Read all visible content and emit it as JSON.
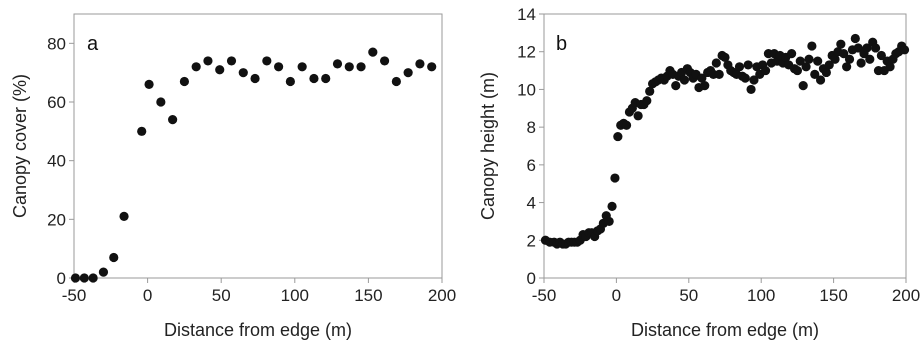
{
  "chart_data": [
    {
      "type": "scatter",
      "panel_label": "a",
      "xlabel": "Distance from edge (m)",
      "ylabel": "Canopy cover (%)",
      "xlim": [
        -50,
        200
      ],
      "ylim": [
        0,
        90
      ],
      "xticks": [
        -50,
        0,
        50,
        100,
        150,
        200
      ],
      "yticks": [
        0,
        20,
        40,
        60,
        80
      ],
      "x": [
        -49,
        -43,
        -37,
        -30,
        -23,
        -16,
        -4,
        1,
        9,
        17,
        25,
        33,
        41,
        49,
        57,
        65,
        73,
        81,
        89,
        97,
        105,
        113,
        121,
        129,
        137,
        145,
        153,
        161,
        169,
        177,
        185,
        193
      ],
      "y": [
        0,
        0,
        0,
        2,
        7,
        21,
        50,
        66,
        60,
        54,
        67,
        72,
        74,
        71,
        74,
        70,
        68,
        74,
        72,
        67,
        72,
        68,
        68,
        73,
        72,
        72,
        77,
        74,
        67,
        70,
        73,
        72
      ],
      "color": "#111111"
    },
    {
      "type": "scatter",
      "panel_label": "b",
      "xlabel": "Distance from edge (m)",
      "ylabel": "Canopy height (m)",
      "xlim": [
        -50,
        200
      ],
      "ylim": [
        0,
        14
      ],
      "xticks": [
        -50,
        0,
        50,
        100,
        150,
        200
      ],
      "yticks": [
        0,
        2,
        4,
        6,
        8,
        10,
        12,
        14
      ],
      "x": [
        -49,
        -46,
        -43,
        -41,
        -39,
        -37,
        -35,
        -33,
        -31,
        -29,
        -27,
        -25,
        -23,
        -21,
        -19,
        -17,
        -15,
        -13,
        -11,
        -9,
        -7,
        -5,
        -3,
        -1,
        1,
        3,
        5,
        7,
        9,
        11,
        13,
        15,
        17,
        19,
        21,
        23,
        25,
        27,
        29,
        31,
        33,
        35,
        37,
        39,
        41,
        43,
        45,
        47,
        49,
        51,
        53,
        55,
        57,
        59,
        61,
        63,
        65,
        67,
        69,
        71,
        73,
        75,
        77,
        79,
        81,
        83,
        85,
        87,
        89,
        91,
        93,
        95,
        97,
        99,
        101,
        103,
        105,
        107,
        109,
        111,
        113,
        115,
        117,
        119,
        121,
        123,
        125,
        127,
        129,
        131,
        133,
        135,
        137,
        139,
        141,
        143,
        145,
        147,
        149,
        151,
        153,
        155,
        157,
        159,
        161,
        163,
        165,
        167,
        169,
        171,
        173,
        175,
        177,
        179,
        181,
        183,
        185,
        187,
        189,
        191,
        193,
        195,
        197,
        199
      ],
      "y": [
        2.0,
        1.9,
        1.9,
        1.8,
        1.9,
        1.8,
        1.8,
        1.9,
        1.9,
        1.9,
        1.9,
        2.0,
        2.3,
        2.2,
        2.4,
        2.4,
        2.2,
        2.5,
        2.6,
        2.9,
        3.3,
        3.0,
        3.8,
        5.3,
        7.5,
        8.1,
        8.2,
        8.1,
        8.8,
        9.0,
        9.3,
        8.6,
        9.2,
        9.2,
        9.4,
        9.9,
        10.3,
        10.4,
        10.5,
        10.6,
        10.5,
        10.7,
        11.0,
        10.8,
        10.2,
        10.7,
        10.9,
        10.5,
        11.1,
        10.9,
        10.6,
        10.8,
        10.1,
        10.6,
        10.2,
        10.9,
        11.0,
        10.8,
        11.4,
        10.8,
        11.8,
        11.7,
        11.3,
        11.0,
        10.9,
        10.8,
        11.2,
        10.7,
        10.6,
        11.3,
        10.0,
        10.5,
        11.2,
        10.8,
        11.3,
        11.0,
        11.9,
        11.4,
        11.9,
        11.5,
        11.8,
        11.4,
        11.7,
        11.3,
        11.9,
        11.1,
        11.0,
        11.5,
        10.2,
        11.2,
        11.6,
        12.3,
        10.8,
        11.5,
        10.5,
        11.1,
        10.9,
        11.3,
        11.8,
        11.6,
        12.0,
        12.4,
        11.9,
        11.2,
        11.6,
        12.1,
        12.7,
        12.2,
        11.4,
        11.9,
        12.2,
        11.6,
        12.5,
        12.2,
        11.0,
        11.8,
        11.0,
        11.5,
        11.2,
        11.6,
        11.9,
        12.0,
        12.3,
        12.1
      ],
      "color": "#111111"
    }
  ]
}
